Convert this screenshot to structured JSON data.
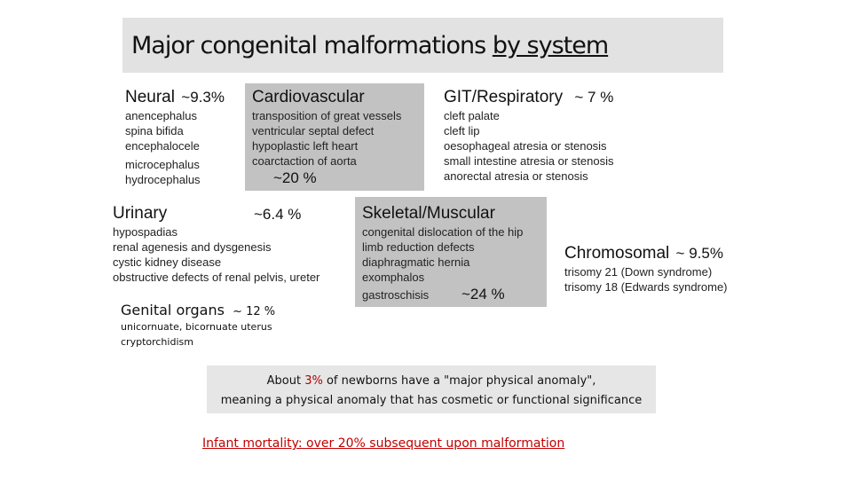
{
  "title": {
    "part1": "Major congenital malformations ",
    "part2": "by system"
  },
  "neural": {
    "heading": "Neural",
    "percent": "~9.3%",
    "items": [
      "anencephalus",
      "spina bifida",
      "encephalocele",
      "microcephalus",
      "hydrocephalus"
    ]
  },
  "cardiovascular": {
    "heading": "Cardiovascular",
    "percent": "~20 %",
    "items": [
      "transposition of great vessels",
      "ventricular septal defect",
      "hypoplastic left heart",
      "coarctaction of aorta"
    ]
  },
  "git": {
    "heading": "GIT/Respiratory",
    "percent": "~ 7 %",
    "items": [
      "cleft palate",
      "cleft lip",
      "oesophageal atresia or stenosis",
      "small intestine atresia or stenosis",
      "anorectal atresia or stenosis"
    ]
  },
  "urinary": {
    "heading": "Urinary",
    "percent": "~6.4 %",
    "items": [
      "hypospadias",
      "renal agenesis and dysgenesis",
      "cystic kidney disease",
      "obstructive defects of renal pelvis, ureter"
    ]
  },
  "skeletal": {
    "heading": "Skeletal/Muscular",
    "percent": "~24 %",
    "items": [
      "congenital dislocation of the hip",
      "limb reduction defects",
      "diaphragmatic hernia",
      "exomphalos",
      "gastroschisis"
    ]
  },
  "chromosomal": {
    "heading": "Chromosomal",
    "percent": "~ 9.5%",
    "items": [
      "trisomy 21 (Down syndrome)",
      "trisomy 18 (Edwards syndrome)"
    ]
  },
  "genital": {
    "heading": "Genital organs",
    "percent": "~ 12 %",
    "items": [
      "unicornuate, bicornuate uterus",
      "cryptorchidism"
    ]
  },
  "note": {
    "pre": "About ",
    "highlight": "3%",
    "mid": " of newborns have a \"major physical anomaly\",",
    "line2": "meaning a physical anomaly that has cosmetic or functional significance"
  },
  "mortality": "Infant mortality: over 20% subsequent upon malformation",
  "colors": {
    "highlight": "#b00000",
    "mortality": "#c00000",
    "box": "#c2c2c2",
    "title_box": "#e2e2e2"
  }
}
